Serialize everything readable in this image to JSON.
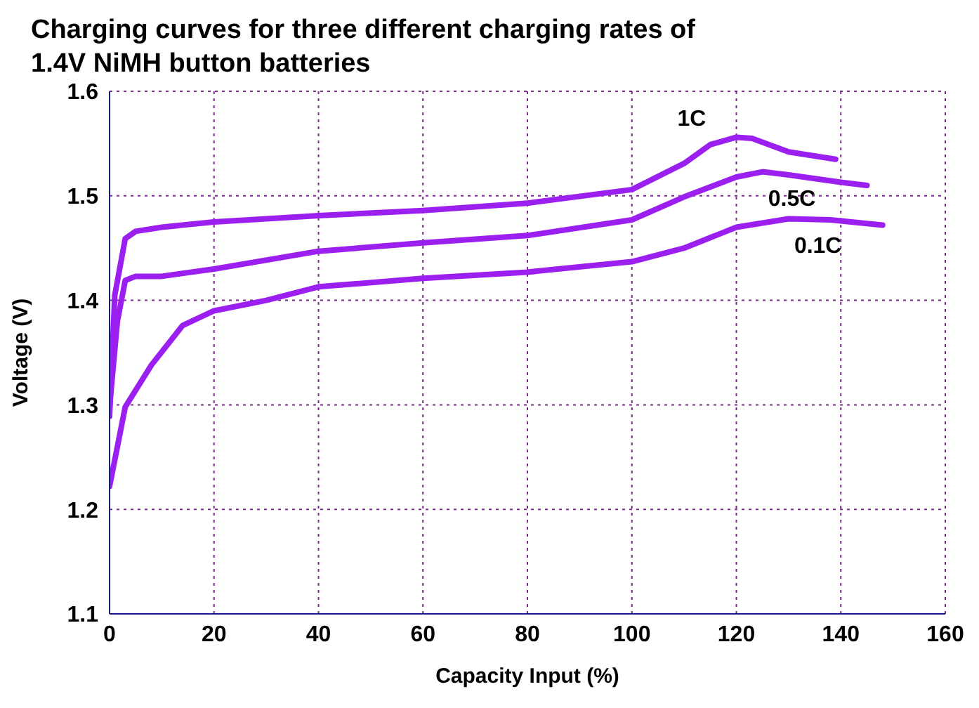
{
  "chart_data": {
    "type": "line",
    "title": "Charging curves for three different charging rates of 1.4V NiMH button batteries",
    "xlabel": "Capacity Input (%)",
    "ylabel": "Voltage (V)",
    "series": [
      {
        "name": "1C",
        "color": "#9b20f0",
        "x": [
          0,
          1,
          3,
          5,
          10,
          20,
          40,
          60,
          80,
          100,
          110,
          115,
          120,
          123,
          130,
          139
        ],
        "values": [
          1.289,
          1.405,
          1.459,
          1.466,
          1.47,
          1.475,
          1.481,
          1.486,
          1.493,
          1.506,
          1.531,
          1.549,
          1.556,
          1.555,
          1.542,
          1.535
        ]
      },
      {
        "name": "0.5C",
        "color": "#9b20f0",
        "x": [
          0,
          1.5,
          3,
          5,
          10,
          20,
          40,
          60,
          80,
          100,
          110,
          120,
          125,
          130,
          140,
          145
        ],
        "values": [
          1.298,
          1.38,
          1.419,
          1.423,
          1.423,
          1.43,
          1.447,
          1.455,
          1.462,
          1.477,
          1.499,
          1.518,
          1.523,
          1.52,
          1.513,
          1.51
        ]
      },
      {
        "name": "0.1C",
        "color": "#9b20f0",
        "x": [
          0,
          3,
          8,
          14,
          20,
          30,
          40,
          60,
          80,
          100,
          110,
          120,
          130,
          138,
          148
        ],
        "values": [
          1.222,
          1.298,
          1.338,
          1.376,
          1.39,
          1.4,
          1.413,
          1.421,
          1.427,
          1.437,
          1.45,
          1.47,
          1.478,
          1.477,
          1.472
        ]
      }
    ],
    "xlim": [
      0,
      160
    ],
    "xticks": [
      0,
      20,
      40,
      60,
      80,
      100,
      120,
      140,
      160
    ],
    "ylim": [
      1.1,
      1.6
    ],
    "yticks": [
      1.1,
      1.2,
      1.3,
      1.4,
      1.5,
      1.6
    ],
    "grid": true,
    "legend": false,
    "marker": "none",
    "line_style": "solid"
  }
}
